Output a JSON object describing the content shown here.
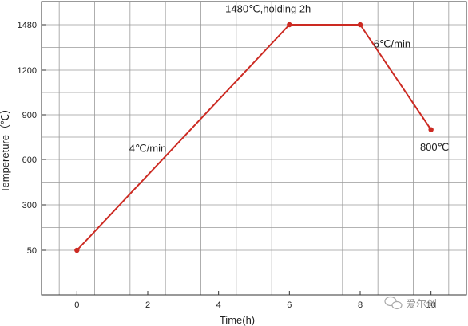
{
  "chart_data": {
    "type": "line",
    "title": "",
    "xlabel": "Time(h)",
    "ylabel": "Tempereture（℃）",
    "xlim": [
      -1,
      11
    ],
    "ylim_labels": [
      "50",
      "300",
      "600",
      "900",
      "1200",
      "1480"
    ],
    "x_ticks": [
      "0",
      "2",
      "4",
      "6",
      "8",
      "10"
    ],
    "y_ticks": [
      "50",
      "300",
      "600",
      "900",
      "1200",
      "1480"
    ],
    "grid": true,
    "legend": "none",
    "line_color": "#cc2a22",
    "series": [
      {
        "x": [
          0,
          6,
          8,
          10
        ],
        "y": [
          50,
          1480,
          1480,
          800
        ]
      }
    ],
    "annotations": [
      {
        "text": "4℃/min",
        "x": 2.0,
        "y": 650
      },
      {
        "text": "1480℃,holding 2h",
        "x": 5.4,
        "y": 1555
      },
      {
        "text": "6℃/min",
        "x": 8.9,
        "y": 1340
      },
      {
        "text": "800℃",
        "x": 10.1,
        "y": 660
      }
    ]
  },
  "watermark": {
    "text": "爱尔创",
    "icon": "wechat-icon"
  }
}
